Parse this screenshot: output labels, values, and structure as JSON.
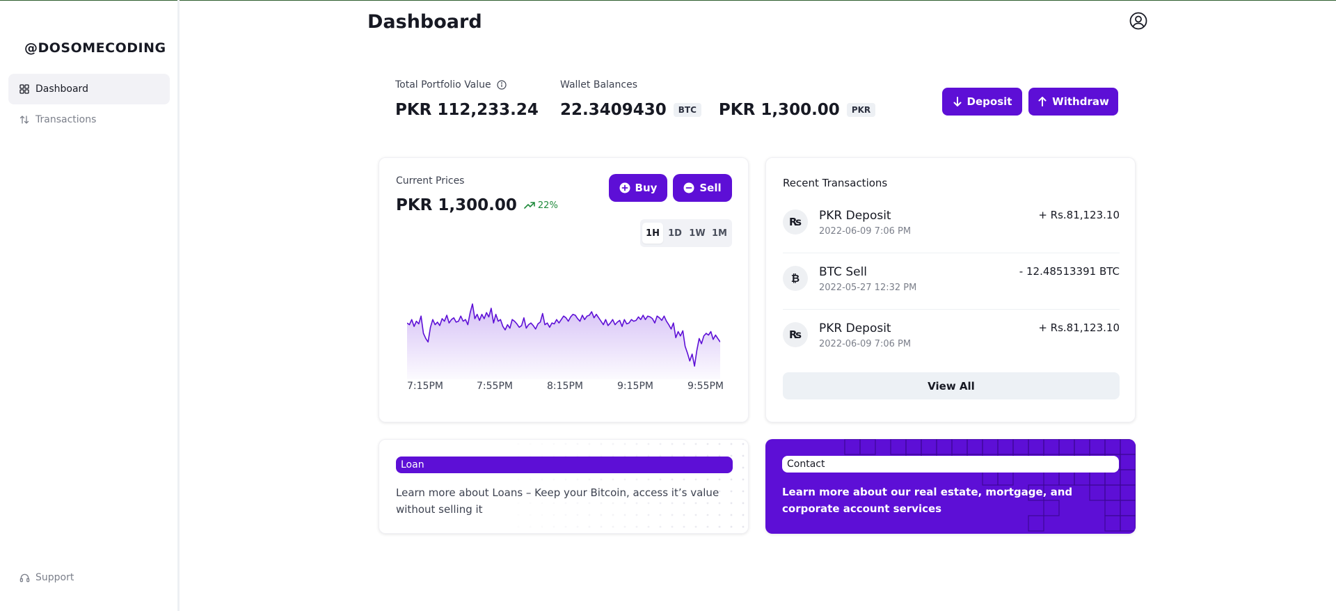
{
  "brand": "@DOSOMECODING",
  "sidebar": {
    "items": [
      {
        "label": "Dashboard",
        "icon": "grid-icon",
        "active": true
      },
      {
        "label": "Transactions",
        "icon": "arrows-up-down-icon",
        "active": false
      }
    ],
    "support_label": "Support"
  },
  "header": {
    "title": "Dashboard",
    "profile_icon": "user-circle-icon"
  },
  "portfolio": {
    "total_label": "Total Portfolio Value",
    "total_value": "PKR 112,233.24",
    "wallet_label": "Wallet Balances",
    "btc_balance": "22.3409430",
    "btc_tag": "BTC",
    "pkr_balance": "PKR 1,300.00",
    "pkr_tag": "PKR",
    "deposit_label": "Deposit",
    "withdraw_label": "Withdraw"
  },
  "prices": {
    "label": "Current Prices",
    "value": "PKR 1,300.00",
    "change": "22%",
    "change_color": "#1f8a3b",
    "buy_label": "Buy",
    "sell_label": "Sell",
    "timeframes": [
      "1H",
      "1D",
      "1W",
      "1M"
    ],
    "active_timeframe": "1H"
  },
  "chart_data": {
    "type": "area",
    "x_ticks": [
      "7:15PM",
      "7:55PM",
      "8:15PM",
      "9:15PM",
      "9:55PM"
    ],
    "line_color": "#5d0fd6",
    "values": [
      62,
      60,
      66,
      58,
      64,
      61,
      70,
      50,
      44,
      40,
      57,
      66,
      60,
      63,
      59,
      67,
      64,
      71,
      62,
      66,
      68,
      63,
      64,
      70,
      64,
      66,
      60,
      74,
      84,
      67,
      72,
      65,
      72,
      67,
      74,
      69,
      79,
      62,
      72,
      64,
      66,
      58,
      54,
      60,
      56,
      66,
      64,
      61,
      57,
      59,
      68,
      56,
      60,
      62,
      59,
      55,
      61,
      63,
      73,
      60,
      62,
      57,
      62,
      61,
      66,
      62,
      66,
      70,
      68,
      64,
      69,
      72,
      71,
      67,
      64,
      71,
      66,
      70,
      71,
      75,
      68,
      72,
      68,
      64,
      60,
      66,
      59,
      62,
      66,
      60,
      63,
      65,
      58,
      66,
      61,
      62,
      66,
      64,
      65,
      69,
      66,
      71,
      66,
      70,
      69,
      67,
      62,
      70,
      68,
      65,
      70,
      64,
      60,
      55,
      62,
      45,
      52,
      47,
      53,
      35,
      27,
      18,
      26,
      12,
      30,
      44,
      38,
      47,
      50,
      48,
      52,
      43,
      48,
      44,
      40
    ],
    "ylim": [
      0,
      100
    ]
  },
  "recent": {
    "title": "Recent Transactions",
    "items": [
      {
        "icon": "rupee-icon",
        "glyph": "₨",
        "title": "PKR Deposit",
        "date": "2022-06-09 7:06 PM",
        "amount": "+ Rs.81,123.10"
      },
      {
        "icon": "bitcoin-icon",
        "glyph": "₿",
        "title": "BTC Sell",
        "date": "2022-05-27 12:32 PM",
        "amount": "- 12.48513391 BTC"
      },
      {
        "icon": "rupee-icon",
        "glyph": "₨",
        "title": "PKR Deposit",
        "date": "2022-06-09 7:06 PM",
        "amount": "+ Rs.81,123.10"
      }
    ],
    "view_all_label": "View All"
  },
  "loan": {
    "tag": "Loan",
    "text": "Learn more about Loans – Keep your Bitcoin, access it’s value without selling it"
  },
  "contact": {
    "tag": "Contact",
    "text": "Learn more about our real estate, mortgage, and corporate account services"
  },
  "colors": {
    "accent": "#5d0fd6"
  }
}
